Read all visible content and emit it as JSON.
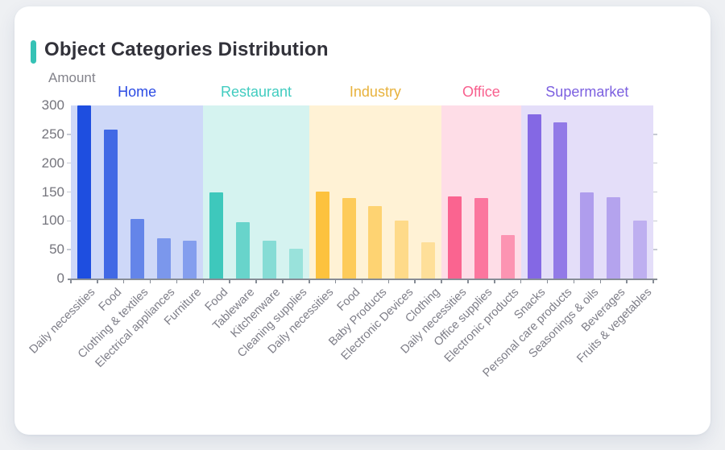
{
  "page": {
    "background_color": "#eef0f3",
    "card_background": "#ffffff"
  },
  "header": {
    "title": "Object Categories Distribution",
    "accent_color": "#35c2b5"
  },
  "chart_data": {
    "type": "bar",
    "title": "Object Categories Distribution",
    "xlabel": "",
    "ylabel": "Amount",
    "ylim": [
      0,
      300
    ],
    "yticks": [
      0,
      50,
      100,
      150,
      200,
      250,
      300
    ],
    "grid": false,
    "legend_position": "group-labels-above-bands",
    "band_opacity": 0.22,
    "groups": [
      {
        "name": "Home",
        "color": "#1e4ee0",
        "label_color": "#2b4be4",
        "categories": [
          "Daily necessities",
          "Food",
          "Clothing & textiles",
          "Electrical appliances",
          "Furniture"
        ],
        "values": [
          300,
          258,
          103,
          70,
          65
        ],
        "bar_opacities": [
          1,
          0.8,
          0.6,
          0.47,
          0.42
        ]
      },
      {
        "name": "Restaurant",
        "color": "#3ec8bc",
        "label_color": "#41ccc0",
        "categories": [
          "Food",
          "Tableware",
          "Kitchenware",
          "Cleaning supplies"
        ],
        "values": [
          149,
          97,
          65,
          51
        ],
        "bar_opacities": [
          1,
          0.72,
          0.52,
          0.4
        ]
      },
      {
        "name": "Industry",
        "color": "#fdc23e",
        "label_color": "#e8b23c",
        "categories": [
          "Daily necessities",
          "Food",
          "Baby Products",
          "Electronic Devices",
          "Clothing"
        ],
        "values": [
          151,
          139,
          126,
          100,
          63
        ],
        "bar_opacities": [
          1,
          0.82,
          0.65,
          0.5,
          0.4
        ]
      },
      {
        "name": "Office",
        "color": "#fa6490",
        "label_color": "#f8608e",
        "categories": [
          "Daily necessities",
          "Office supplies",
          "Electronic products"
        ],
        "values": [
          143,
          139,
          75
        ],
        "bar_opacities": [
          1,
          0.85,
          0.6
        ]
      },
      {
        "name": "Supermarket",
        "color": "#8468e4",
        "label_color": "#7c60e0",
        "categories": [
          "Snacks",
          "Personal care products",
          "Seasonings & oils",
          "Beverages",
          "Fruits & vegetables"
        ],
        "values": [
          285,
          271,
          149,
          141,
          101
        ],
        "bar_opacities": [
          1,
          0.85,
          0.55,
          0.5,
          0.4
        ]
      }
    ]
  }
}
